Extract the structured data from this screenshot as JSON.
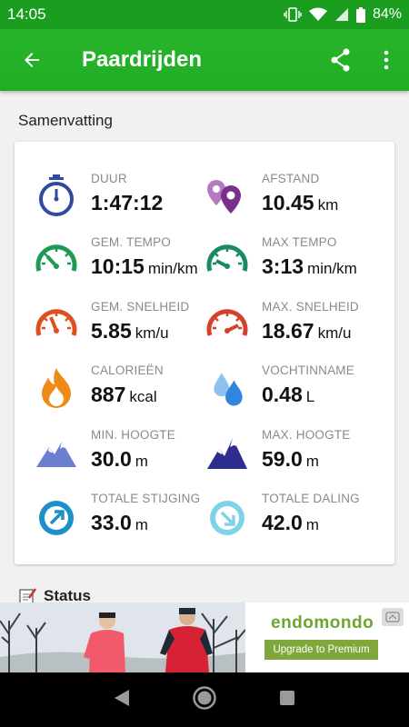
{
  "status_bar": {
    "time": "14:05",
    "battery": "84%"
  },
  "app_bar": {
    "title": "Paardrijden"
  },
  "summary": {
    "title": "Samenvatting",
    "stats": [
      {
        "label": "DUUR",
        "value": "1:47:12",
        "unit": "",
        "icon": "stopwatch-icon",
        "color": "#2f4a9e"
      },
      {
        "label": "AFSTAND",
        "value": "10.45",
        "unit": "km",
        "icon": "map-pin-icon",
        "color": "#8a3e99"
      },
      {
        "label": "GEM. TEMPO",
        "value": "10:15",
        "unit": "min/km",
        "icon": "speedometer-green-icon",
        "color": "#1e9a55"
      },
      {
        "label": "MAX TEMPO",
        "value": "3:13",
        "unit": "min/km",
        "icon": "speedometer-teal-icon",
        "color": "#1a8a63"
      },
      {
        "label": "GEM. SNELHEID",
        "value": "5.85",
        "unit": "km/u",
        "icon": "speedometer-orange-icon",
        "color": "#e0501f"
      },
      {
        "label": "MAX. SNELHEID",
        "value": "18.67",
        "unit": "km/u",
        "icon": "speedometer-red-icon",
        "color": "#d4402a"
      },
      {
        "label": "CALORIEËN",
        "value": "887",
        "unit": "kcal",
        "icon": "flame-icon",
        "color": "#f08a17"
      },
      {
        "label": "VOCHTINNAME",
        "value": "0.48",
        "unit": "L",
        "icon": "water-drops-icon",
        "color": "#3b8fe0"
      },
      {
        "label": "MIN. HOOGTE",
        "value": "30.0",
        "unit": "m",
        "icon": "mountain-light-icon",
        "color": "#6a7fd0"
      },
      {
        "label": "MAX. HOOGTE",
        "value": "59.0",
        "unit": "m",
        "icon": "mountain-dark-icon",
        "color": "#2d2f8e"
      },
      {
        "label": "TOTALE STIJGING",
        "value": "33.0",
        "unit": "m",
        "icon": "ascent-arrow-icon",
        "color": "#1d8fc9"
      },
      {
        "label": "TOTALE DALING",
        "value": "42.0",
        "unit": "m",
        "icon": "descent-arrow-icon",
        "color": "#7fd3e8"
      }
    ]
  },
  "status_section": {
    "title": "Status"
  },
  "ad": {
    "brand": "endomondo",
    "cta": "Upgrade to Premium"
  }
}
